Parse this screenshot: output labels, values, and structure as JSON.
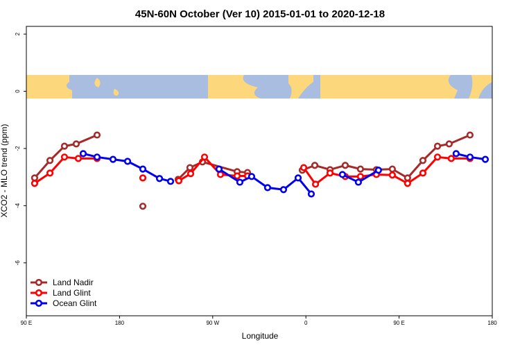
{
  "chart_data": {
    "type": "line",
    "title": "45N-60N October (Ver 10)   2015-01-01 to 2020-12-18",
    "x_label": "Longitude",
    "y_label": "XCO2 - MLO trend (ppm)",
    "xlim": [
      90,
      540
    ],
    "ylim": [
      -7.85,
      2.27
    ],
    "xticks": [
      {
        "value": 90,
        "label": "90 E"
      },
      {
        "value": 180,
        "label": "180"
      },
      {
        "value": 270,
        "label": "90 W"
      },
      {
        "value": 360,
        "label": "0"
      },
      {
        "value": 450,
        "label": "90 E"
      },
      {
        "value": 540,
        "label": "180"
      }
    ],
    "yticks": [
      2,
      0,
      -2,
      -4,
      -6
    ],
    "legend_position": "bottom-left",
    "series": [
      {
        "name": "Land Nadir",
        "color": "#a52a2a",
        "x": [
          98.0,
          112.8,
          126.8,
          138.2,
          158.3,
          null,
          202.5,
          null,
          236.6,
          248.0,
          260.1,
          293.6,
          303.6,
          null,
          356.5,
          368.6,
          383.3,
          398.0,
          412.7,
          428.1,
          443.5,
          458.2,
          473.0,
          487.1,
          498.4,
          518.5
        ],
        "values": [
          -3.03,
          -2.42,
          -1.92,
          -1.84,
          -1.53,
          null,
          -4.02,
          null,
          -3.08,
          -2.67,
          -2.47,
          -2.81,
          -2.84,
          null,
          -2.76,
          -2.59,
          -2.74,
          -2.59,
          -2.72,
          -2.74,
          -2.72,
          -3.03,
          -2.42,
          -1.92,
          -1.84,
          -1.53
        ]
      },
      {
        "name": "Land Glint",
        "color": "#ff0000",
        "x": [
          98.0,
          112.8,
          126.8,
          140.2,
          158.3,
          null,
          202.5,
          null,
          237.3,
          248.7,
          262.1,
          277.5,
          293.6,
          303.6,
          null,
          357.9,
          369.3,
          383.3,
          398.0,
          412.7,
          428.1,
          443.5,
          458.2,
          473.0,
          487.1,
          500.4,
          518.5
        ],
        "values": [
          -3.22,
          -2.86,
          -2.3,
          -2.35,
          -2.35,
          null,
          -3.03,
          null,
          -3.13,
          -2.88,
          -2.3,
          -2.91,
          -2.96,
          -2.96,
          null,
          -2.67,
          -3.25,
          -2.86,
          -2.98,
          -2.98,
          -2.91,
          -2.93,
          -3.22,
          -2.86,
          -2.3,
          -2.35,
          -2.35
        ]
      },
      {
        "name": "Ocean Glint",
        "color": "#0000ee",
        "x": [
          144.9,
          158.3,
          173.7,
          187.8,
          202.5,
          218.6,
          229.3,
          null,
          276.1,
          296.2,
          307.6,
          323.0,
          338.4,
          352.5,
          365.2,
          null,
          395.3,
          410.7,
          430.1,
          null,
          505.1,
          518.5,
          533.3
        ],
        "values": [
          -2.18,
          -2.3,
          -2.38,
          -2.45,
          -2.72,
          -3.05,
          -3.15,
          null,
          -2.72,
          -3.18,
          -2.98,
          -3.37,
          -3.44,
          -3.03,
          -3.59,
          null,
          -2.91,
          -3.18,
          -2.76,
          null,
          -2.18,
          -2.3,
          -2.38
        ]
      }
    ]
  }
}
